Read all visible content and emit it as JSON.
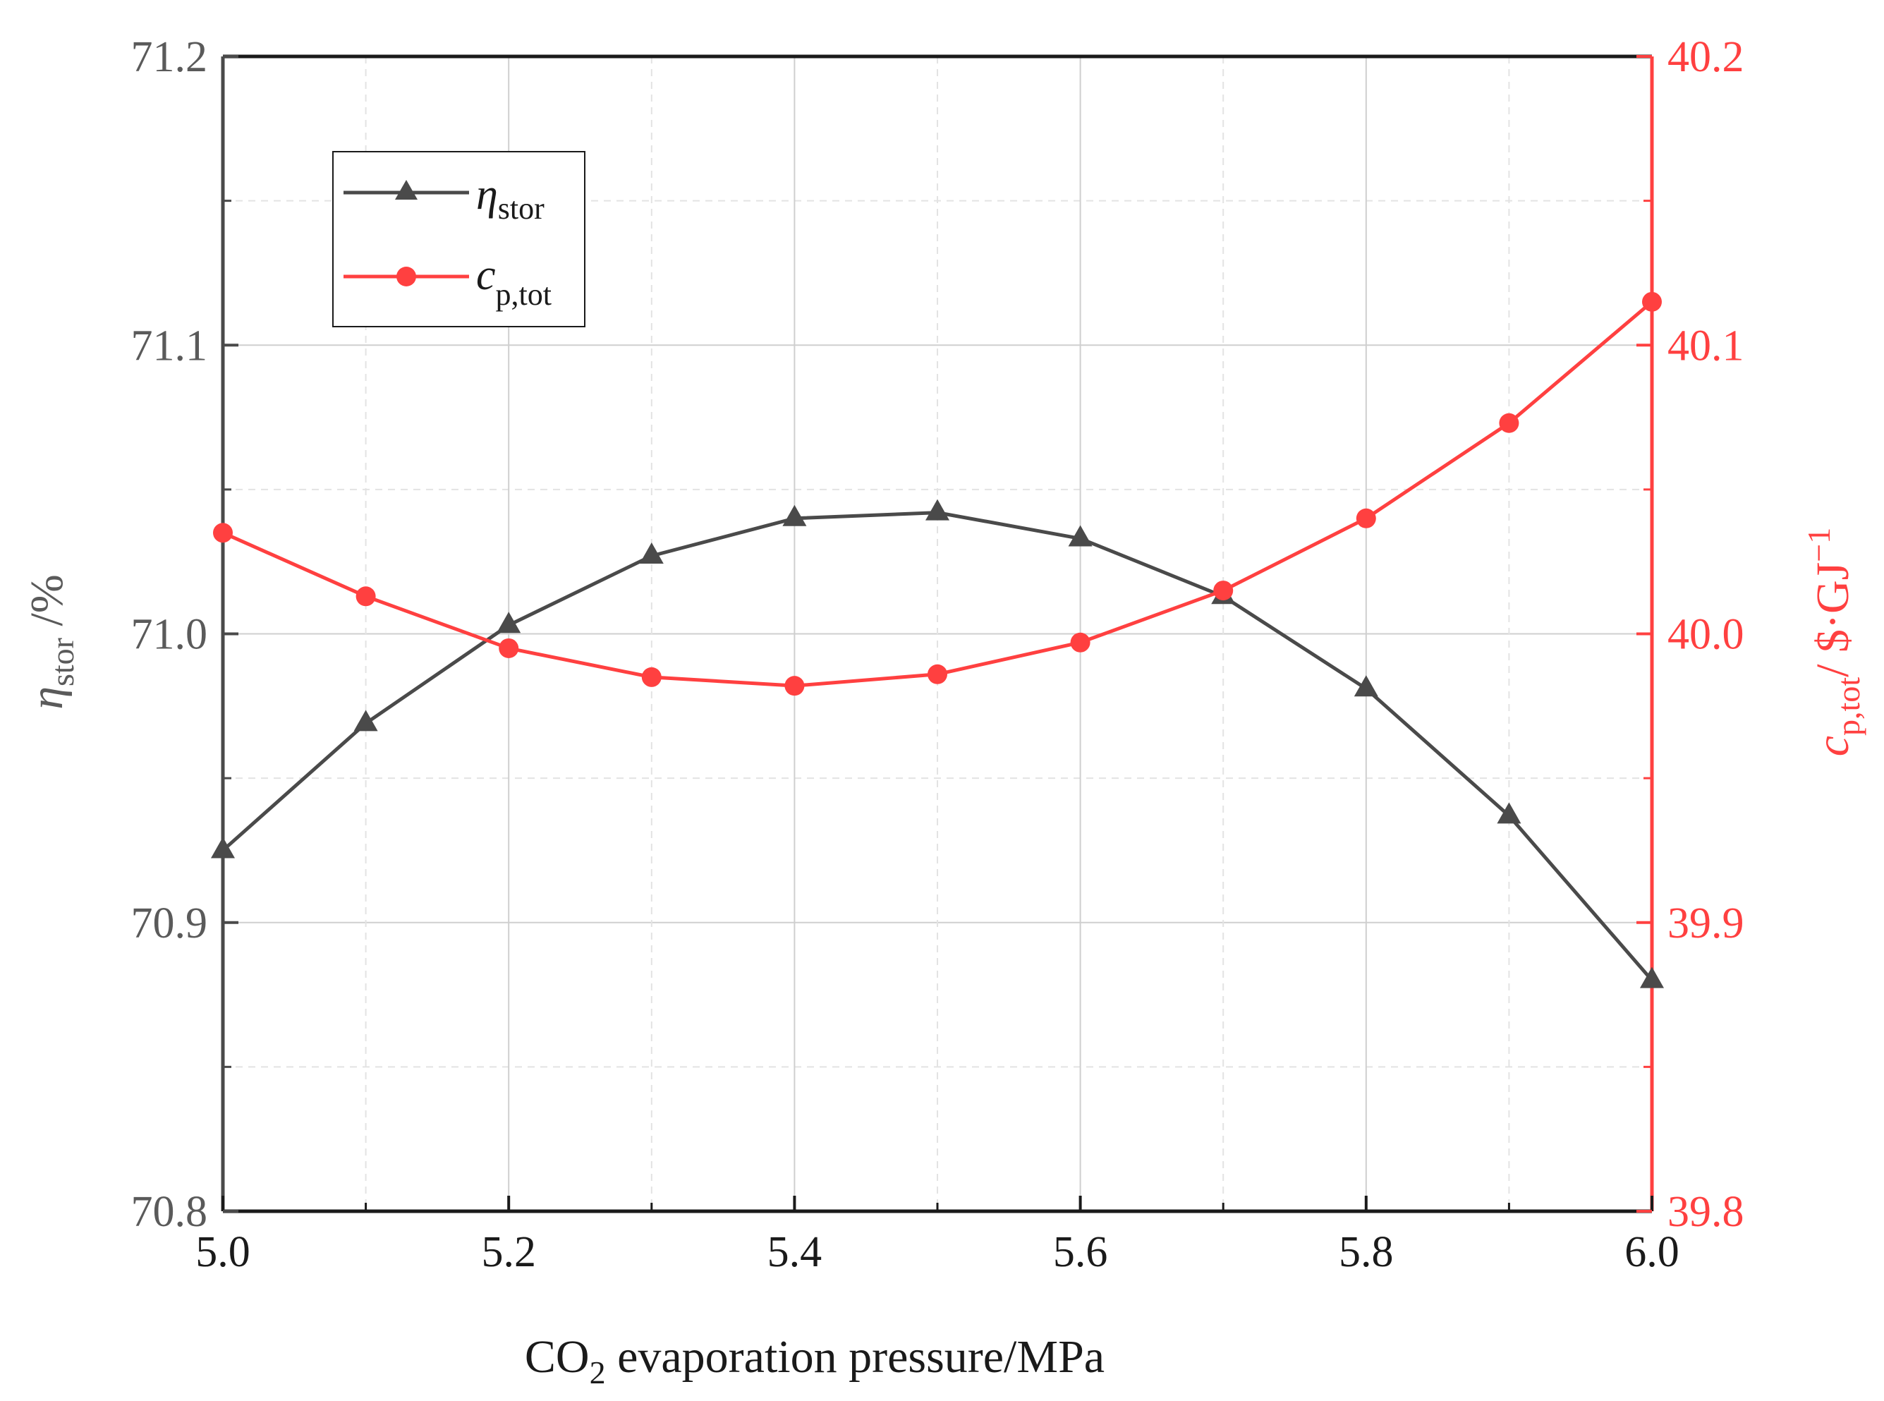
{
  "chart_data": {
    "type": "line",
    "x": [
      5.0,
      5.1,
      5.2,
      5.3,
      5.4,
      5.5,
      5.6,
      5.7,
      5.8,
      5.9,
      6.0
    ],
    "xlim": [
      5.0,
      6.0
    ],
    "x_ticks": [
      "5.0",
      "5.2",
      "5.4",
      "5.6",
      "5.8",
      "6.0"
    ],
    "xlabel": {
      "prefix": "CO",
      "sub": "2",
      "suffix": " evaporation pressure/MPa"
    },
    "y_left": {
      "lim": [
        70.8,
        71.2
      ],
      "ticks": [
        "70.8",
        "70.9",
        "71.0",
        "71.1",
        "71.2"
      ],
      "label": {
        "symbol": "η",
        "sub": "stor",
        "suffix": " /%"
      }
    },
    "y_right": {
      "lim": [
        39.8,
        40.2
      ],
      "ticks": [
        "39.8",
        "39.9",
        "40.0",
        "40.1",
        "40.2"
      ],
      "label": {
        "symbol": "c",
        "sub": "p,tot",
        "suffix": "/ $·GJ",
        "sup": "−1"
      }
    },
    "grid": true,
    "legend_position": "top-left",
    "series": [
      {
        "name": "eta_stor",
        "legend_symbol": "η",
        "legend_sub": "stor",
        "axis": "left",
        "marker": "triangle",
        "color": "#4a4a4a",
        "values": [
          70.925,
          70.969,
          71.003,
          71.027,
          71.04,
          71.042,
          71.033,
          71.013,
          70.981,
          70.937,
          70.88
        ]
      },
      {
        "name": "c_p_tot",
        "legend_symbol": "c",
        "legend_sub": "p,tot",
        "axis": "right",
        "marker": "circle",
        "color": "#ff4040",
        "values": [
          40.035,
          40.013,
          39.995,
          39.985,
          39.982,
          39.986,
          39.997,
          40.015,
          40.04,
          40.073,
          40.115
        ]
      }
    ]
  }
}
